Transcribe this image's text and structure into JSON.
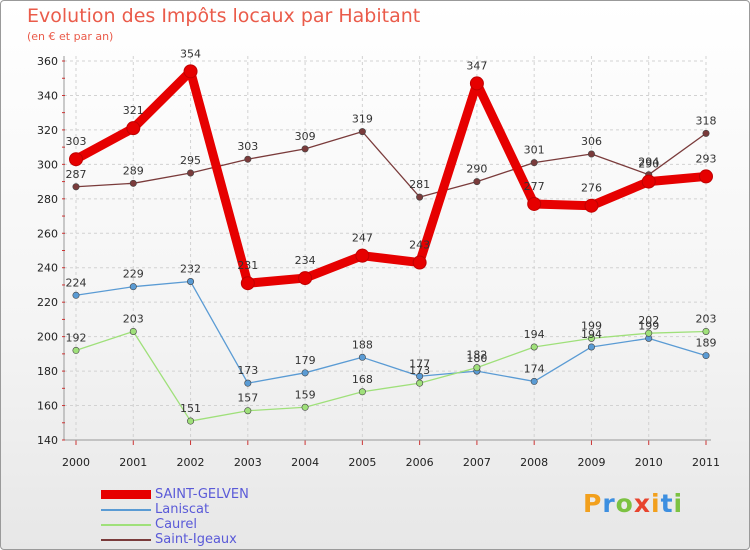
{
  "chart_data": {
    "type": "line",
    "title": "Evolution des Impôts locaux par Habitant",
    "subtitle": "(en € et par an)",
    "xlabel": "",
    "ylabel": "",
    "ylim": [
      140,
      360
    ],
    "yticks": [
      140,
      160,
      180,
      200,
      220,
      240,
      260,
      280,
      300,
      320,
      340,
      360
    ],
    "categories": [
      "2000",
      "2001",
      "2002",
      "2003",
      "2004",
      "2005",
      "2006",
      "2007",
      "2008",
      "2009",
      "2010",
      "2011"
    ],
    "grid": true,
    "series": [
      {
        "name": "SAINT-GELVEN",
        "color": "#e60000",
        "width": 9,
        "values": [
          303,
          321,
          354,
          231,
          234,
          247,
          243,
          347,
          277,
          276,
          290,
          293
        ]
      },
      {
        "name": "Laniscat",
        "color": "#5a9bd4",
        "width": 1.3,
        "values": [
          224,
          229,
          232,
          173,
          179,
          188,
          177,
          180,
          174,
          194,
          199,
          189
        ]
      },
      {
        "name": "Caurel",
        "color": "#9fe07a",
        "width": 1.3,
        "values": [
          192,
          203,
          151,
          157,
          159,
          168,
          173,
          182,
          194,
          199,
          202,
          203
        ]
      },
      {
        "name": "Saint-Igeaux",
        "color": "#7a3b3b",
        "width": 1.3,
        "values": [
          287,
          289,
          295,
          303,
          309,
          319,
          281,
          290,
          301,
          306,
          294,
          318
        ]
      }
    ]
  },
  "branding": {
    "letters": [
      "P",
      "r",
      "o",
      "x",
      "i",
      "t",
      "i"
    ],
    "colors": [
      "#f2a01d",
      "#3d8fe0",
      "#7cc242",
      "#e8442e",
      "#f2a01d",
      "#3d8fe0",
      "#7cc242"
    ]
  }
}
